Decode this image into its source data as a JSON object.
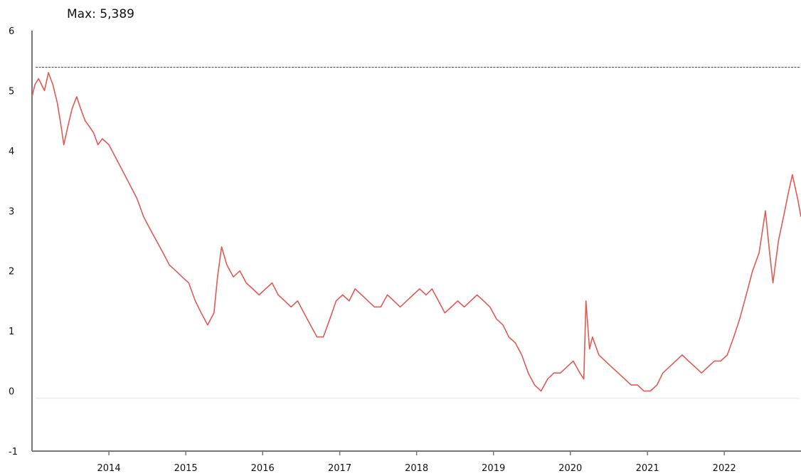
{
  "chart_data": {
    "type": "line",
    "title": "",
    "xlabel": "",
    "ylabel": "",
    "ylim": [
      -1,
      6
    ],
    "xlim": [
      "2013-01-01",
      "2022-12-31"
    ],
    "y_ticks": [
      "-1",
      "0",
      "1",
      "2",
      "3",
      "4",
      "5",
      "6"
    ],
    "x_ticks": [
      "2014",
      "2015",
      "2016",
      "2017",
      "2018",
      "2019",
      "2020",
      "2021",
      "2022"
    ],
    "grid": false,
    "legend": "none",
    "series_color": "#e05a52",
    "reference_line_color": "#555555",
    "annotations": {
      "max_label": "Max: 5,389",
      "max_value": 5.389
    },
    "series": [
      {
        "x": [
          "2013-01-01",
          "2013-01-15",
          "2013-02-01",
          "2013-03-01",
          "2013-03-20",
          "2013-04-10",
          "2013-05-01",
          "2013-05-15",
          "2013-06-01",
          "2013-06-20",
          "2013-07-10",
          "2013-08-01",
          "2013-08-20",
          "2013-09-10",
          "2013-10-01",
          "2013-10-20",
          "2013-11-10",
          "2013-12-01",
          "2014-01-01",
          "2014-02-15",
          "2014-04-01",
          "2014-05-15",
          "2014-06-15",
          "2014-07-15",
          "2014-08-15",
          "2014-09-15",
          "2014-10-15",
          "2014-11-15",
          "2014-12-15",
          "2015-01-15",
          "2015-02-15",
          "2015-03-15",
          "2015-04-15",
          "2015-05-15",
          "2015-06-01",
          "2015-06-20",
          "2015-07-15",
          "2015-08-15",
          "2015-09-15",
          "2015-10-15",
          "2015-11-15",
          "2015-12-15",
          "2016-01-15",
          "2016-02-15",
          "2016-03-15",
          "2016-04-15",
          "2016-05-15",
          "2016-06-15",
          "2016-07-15",
          "2016-08-15",
          "2016-09-15",
          "2016-10-15",
          "2016-11-15",
          "2016-12-15",
          "2017-01-15",
          "2017-02-15",
          "2017-03-15",
          "2017-04-15",
          "2017-05-15",
          "2017-06-15",
          "2017-07-15",
          "2017-08-15",
          "2017-09-15",
          "2017-10-15",
          "2017-11-15",
          "2017-12-15",
          "2018-01-15",
          "2018-02-15",
          "2018-03-15",
          "2018-04-15",
          "2018-05-15",
          "2018-06-15",
          "2018-07-15",
          "2018-08-15",
          "2018-09-15",
          "2018-10-15",
          "2018-11-15",
          "2018-12-15",
          "2019-01-15",
          "2019-02-15",
          "2019-03-15",
          "2019-04-15",
          "2019-05-15",
          "2019-06-15",
          "2019-07-15",
          "2019-08-15",
          "2019-09-15",
          "2019-10-15",
          "2019-11-15",
          "2019-12-15",
          "2020-01-15",
          "2020-02-15",
          "2020-03-05",
          "2020-03-15",
          "2020-04-01",
          "2020-04-15",
          "2020-05-15",
          "2020-06-15",
          "2020-07-15",
          "2020-08-15",
          "2020-09-15",
          "2020-10-15",
          "2020-11-15",
          "2020-12-15",
          "2021-01-15",
          "2021-02-15",
          "2021-03-15",
          "2021-04-15",
          "2021-05-15",
          "2021-06-15",
          "2021-07-15",
          "2021-08-15",
          "2021-09-15",
          "2021-10-15",
          "2021-11-15",
          "2021-12-15",
          "2022-01-15",
          "2022-02-15",
          "2022-03-15",
          "2022-04-15",
          "2022-05-15",
          "2022-06-15",
          "2022-07-15",
          "2022-08-01",
          "2022-08-20",
          "2022-09-15",
          "2022-10-15",
          "2022-11-01",
          "2022-11-20",
          "2022-12-15",
          "2022-12-31"
        ],
        "y": [
          4.9,
          5.1,
          5.2,
          5.0,
          5.3,
          5.1,
          4.8,
          4.5,
          4.1,
          4.4,
          4.7,
          4.9,
          4.7,
          4.5,
          4.4,
          4.3,
          4.1,
          4.2,
          4.1,
          3.8,
          3.5,
          3.2,
          2.9,
          2.7,
          2.5,
          2.3,
          2.1,
          2.0,
          1.9,
          1.8,
          1.5,
          1.3,
          1.1,
          1.3,
          1.9,
          2.4,
          2.1,
          1.9,
          2.0,
          1.8,
          1.7,
          1.6,
          1.7,
          1.8,
          1.6,
          1.5,
          1.4,
          1.5,
          1.3,
          1.1,
          0.9,
          0.9,
          1.2,
          1.5,
          1.6,
          1.5,
          1.7,
          1.6,
          1.5,
          1.4,
          1.4,
          1.6,
          1.5,
          1.4,
          1.5,
          1.6,
          1.7,
          1.6,
          1.7,
          1.5,
          1.3,
          1.4,
          1.5,
          1.4,
          1.5,
          1.6,
          1.5,
          1.4,
          1.2,
          1.1,
          0.9,
          0.8,
          0.6,
          0.3,
          0.1,
          0.0,
          0.2,
          0.3,
          0.3,
          0.4,
          0.5,
          0.3,
          0.2,
          1.5,
          0.7,
          0.9,
          0.6,
          0.5,
          0.4,
          0.3,
          0.2,
          0.1,
          0.1,
          0.0,
          0.0,
          0.1,
          0.3,
          0.4,
          0.5,
          0.6,
          0.5,
          0.4,
          0.3,
          0.4,
          0.5,
          0.5,
          0.6,
          0.9,
          1.2,
          1.6,
          2.0,
          2.3,
          3.0,
          2.4,
          1.8,
          2.5,
          3.0,
          3.3,
          3.6,
          3.2,
          2.9
        ]
      }
    ]
  }
}
